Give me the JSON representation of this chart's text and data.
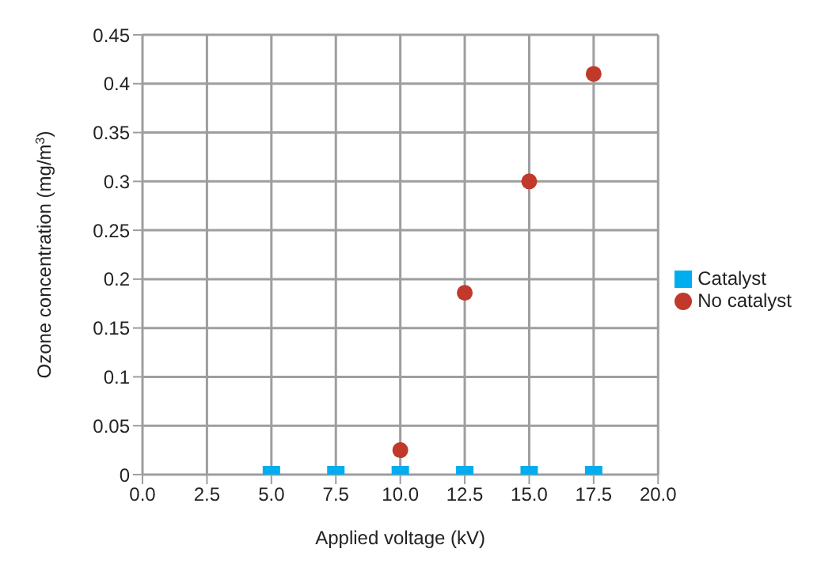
{
  "chart_data": {
    "type": "scatter",
    "xlabel": "Applied voltage (kV)",
    "ylabel": "Ozone concentration (mg/m$^{3}$)",
    "x": [
      5,
      7.5,
      10,
      12.5,
      15,
      17.5
    ],
    "series": [
      {
        "name": "No catalyst",
        "color": "#c0392b",
        "marker": "circle",
        "values": [
          null,
          null,
          0.025,
          0.186,
          0.3,
          0.41
        ]
      },
      {
        "name": "Catalyst",
        "color": "#00aeef",
        "marker": "square",
        "values": [
          0,
          0,
          0,
          0,
          0,
          0
        ]
      }
    ],
    "xlim": [
      0,
      20
    ],
    "xticks": [
      {
        "value": 0,
        "label": "0.0"
      },
      2.5,
      {
        "value": 5,
        "label": "5.0"
      },
      7.5,
      {
        "value": 10,
        "label": "10.0"
      },
      12.5,
      {
        "value": 15,
        "label": "15.0"
      },
      17.5,
      {
        "value": 20,
        "label": "20.0"
      }
    ],
    "ylim": [
      0,
      0.45
    ],
    "yticks": [
      0,
      0.05,
      0.1,
      0.15,
      0.2,
      0.25,
      0.3,
      0.35,
      0.4,
      0.45
    ],
    "grid": true,
    "legend": "right"
  }
}
